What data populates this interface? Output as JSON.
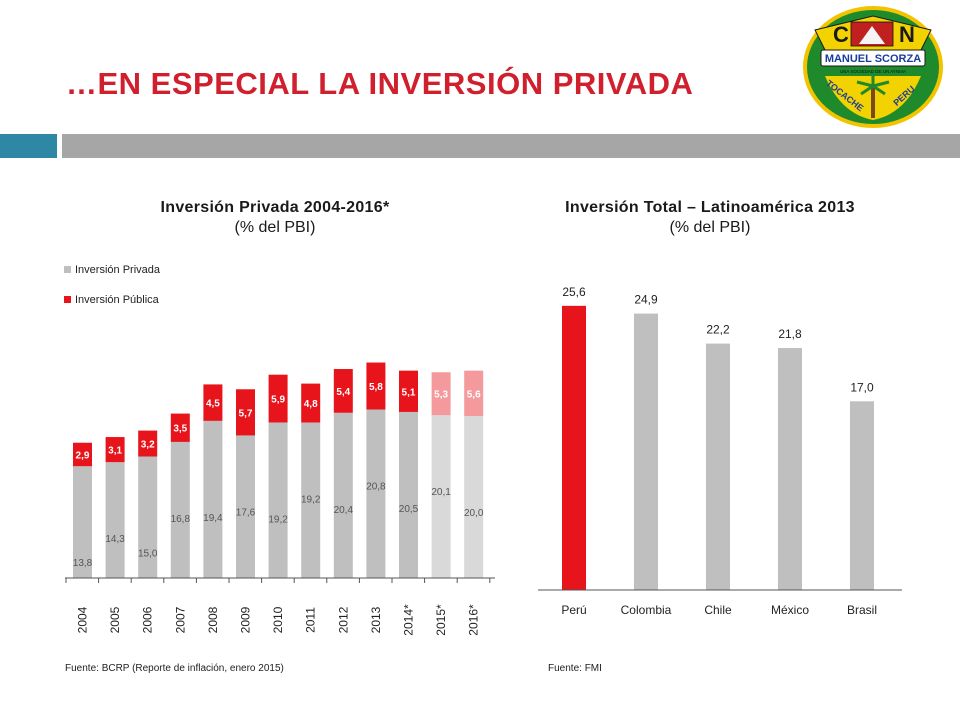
{
  "slide": {
    "title": "…EN ESPECIAL LA INVERSIÓN PRIVADA"
  },
  "logo": {
    "letter_left": "C",
    "letter_right": "N",
    "banner_text": "MANUEL SCORZA",
    "motto": "UNA SOCIEDAD DE UN AYNIVA",
    "place_left": "TOCACHE",
    "place_right": "PERU"
  },
  "left_panel": {
    "title": "Inversión Privada 2004-2016*",
    "subtitle": "(% del PBI)",
    "source": "Fuente: BCRP (Reporte de inflación, enero 2015)"
  },
  "right_panel": {
    "title": "Inversión Total – Latinoamérica 2013",
    "subtitle": "(% del PBI)",
    "source": "Fuente: FMI"
  },
  "colors": {
    "title_red": "#d0202e",
    "accent_blue": "#2f87a6",
    "gray_bar": "#a6a6a6",
    "private": "#bfbfbf",
    "public": "#e8141c",
    "private_projected": "#d9d9d9",
    "public_projected": "#f4999c"
  },
  "chart_data": [
    {
      "type": "bar",
      "stacked": true,
      "title": "Inversión Privada 2004-2016*",
      "subtitle": "(% del PBI)",
      "categories": [
        "2004",
        "2005",
        "2006",
        "2007",
        "2008",
        "2009",
        "2010",
        "2011",
        "2012",
        "2013",
        "2014*",
        "2015*",
        "2016*"
      ],
      "series": [
        {
          "name": "Inversión Privada",
          "values": [
            13.8,
            14.3,
            15.0,
            16.8,
            19.4,
            17.6,
            19.2,
            19.2,
            20.4,
            20.8,
            20.5,
            20.1,
            20.0
          ],
          "labels": [
            "13,8",
            "14,3",
            "15,0",
            "16,8",
            "19,4",
            "17,6",
            "19,2",
            "19,2",
            "20,4",
            "20,8",
            "20,5",
            "20,1",
            "20,0"
          ]
        },
        {
          "name": "Inversión Pública",
          "values": [
            2.9,
            3.1,
            3.2,
            3.5,
            4.5,
            5.7,
            5.9,
            4.8,
            5.4,
            5.8,
            5.1,
            5.3,
            5.6
          ],
          "labels": [
            "2,9",
            "3,1",
            "3,2",
            "3,5",
            "4,5",
            "5,7",
            "5,9",
            "4,8",
            "5,4",
            "5,8",
            "5,1",
            "5,3",
            "5,6"
          ]
        }
      ],
      "projected": [
        "2015*",
        "2016*"
      ],
      "legend": "top-left",
      "grid": false,
      "xlabel": "",
      "ylabel": ""
    },
    {
      "type": "bar",
      "title": "Inversión Total – Latinoamérica 2013",
      "subtitle": "(% del PBI)",
      "categories": [
        "Perú",
        "Colombia",
        "Chile",
        "México",
        "Brasil"
      ],
      "values": [
        25.6,
        24.9,
        22.2,
        21.8,
        17.0
      ],
      "labels": [
        "25,6",
        "24,9",
        "22,2",
        "21,8",
        "17,0"
      ],
      "highlight": "Perú",
      "grid": false,
      "xlabel": "",
      "ylabel": ""
    }
  ]
}
